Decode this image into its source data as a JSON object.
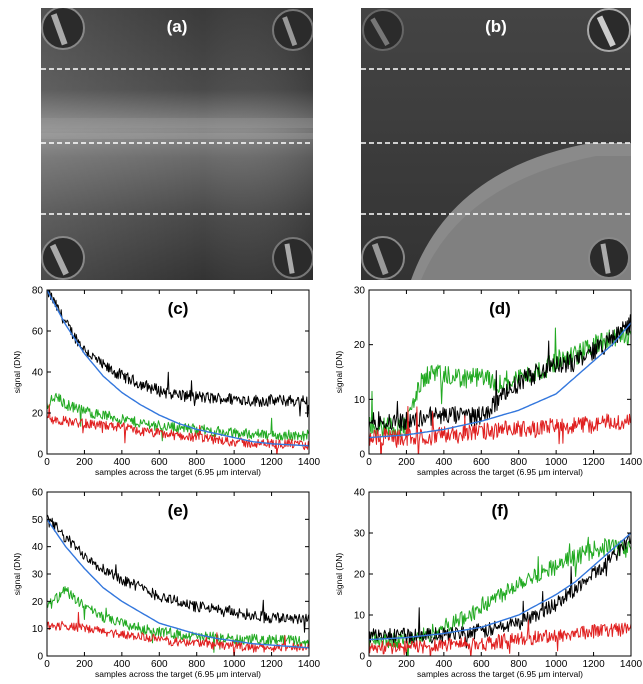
{
  "images": [
    {
      "id": "a",
      "label": "(a)"
    },
    {
      "id": "b",
      "label": "(b)"
    }
  ],
  "chart_data": [
    {
      "id": "c",
      "type": "line",
      "label": "(c)",
      "xlabel": "samples across the target (6.95 μm interval)",
      "ylabel": "signal (DN)",
      "xlim": [
        0,
        1400
      ],
      "ylim": [
        0,
        80
      ],
      "xticks": [
        0,
        200,
        400,
        600,
        800,
        1000,
        1200,
        1400
      ],
      "yticks": [
        0,
        20,
        40,
        60,
        80
      ],
      "series": [
        {
          "color": "#000000",
          "noise": 2.5,
          "x": [
            0,
            50,
            100,
            150,
            200,
            300,
            400,
            500,
            600,
            700,
            800,
            900,
            1000,
            1100,
            1200,
            1300,
            1400
          ],
          "y": [
            80,
            72,
            64,
            57,
            51,
            43,
            38,
            34,
            31,
            29,
            28,
            27,
            27,
            26,
            26,
            26,
            26
          ]
        },
        {
          "color": "#22aa22",
          "noise": 2.2,
          "x": [
            0,
            50,
            100,
            200,
            300,
            400,
            500,
            600,
            700,
            800,
            900,
            1000,
            1100,
            1200,
            1300,
            1400
          ],
          "y": [
            24,
            28,
            24,
            21,
            19,
            17,
            15,
            14,
            13,
            12,
            11,
            10,
            10,
            9,
            9,
            9
          ]
        },
        {
          "color": "#e02020",
          "noise": 2.0,
          "x": [
            0,
            100,
            200,
            300,
            400,
            500,
            600,
            700,
            800,
            900,
            1000,
            1100,
            1200,
            1300,
            1400
          ],
          "y": [
            17,
            16,
            15,
            14,
            13,
            11,
            10,
            9,
            8,
            7,
            6,
            5,
            5,
            5,
            4
          ]
        },
        {
          "color": "#3377dd",
          "noise": 0,
          "x": [
            0,
            100,
            200,
            300,
            400,
            500,
            600,
            700,
            800,
            900,
            1000,
            1100,
            1200,
            1300,
            1400
          ],
          "y": [
            80,
            63,
            49,
            38,
            30,
            24,
            19,
            15,
            12,
            10,
            8,
            6,
            5,
            4.5,
            4
          ]
        }
      ]
    },
    {
      "id": "d",
      "type": "line",
      "label": "(d)",
      "xlabel": "samples across the target (6.95 μm interval)",
      "ylabel": "signal (DN)",
      "xlim": [
        0,
        1400
      ],
      "ylim": [
        0,
        30
      ],
      "xticks": [
        0,
        200,
        400,
        600,
        800,
        1000,
        1200,
        1400
      ],
      "yticks": [
        0,
        10,
        20,
        30
      ],
      "series": [
        {
          "color": "#22aa22",
          "noise": 1.6,
          "x": [
            0,
            200,
            230,
            280,
            330,
            400,
            500,
            600,
            700,
            800,
            900,
            1000,
            1100,
            1200,
            1300,
            1400
          ],
          "y": [
            5,
            5,
            9,
            13,
            15,
            14,
            14,
            14,
            13,
            14,
            15,
            17,
            18,
            20,
            21,
            22
          ]
        },
        {
          "color": "#000000",
          "noise": 1.5,
          "x": [
            0,
            250,
            300,
            400,
            500,
            600,
            700,
            800,
            900,
            1000,
            1100,
            1200,
            1300,
            1400
          ],
          "y": [
            6,
            6,
            7,
            7,
            7,
            7,
            10,
            13,
            15,
            16,
            17,
            19,
            21,
            24
          ]
        },
        {
          "color": "#e02020",
          "noise": 1.4,
          "x": [
            0,
            200,
            400,
            600,
            800,
            1000,
            1200,
            1400
          ],
          "y": [
            3,
            3,
            3.5,
            4,
            4.5,
            5,
            5.5,
            6
          ]
        },
        {
          "color": "#3377dd",
          "noise": 0,
          "x": [
            0,
            200,
            400,
            600,
            800,
            1000,
            1100,
            1200,
            1300,
            1400
          ],
          "y": [
            3,
            3.5,
            4.5,
            6,
            8,
            11,
            14,
            17,
            20,
            24
          ]
        }
      ]
    },
    {
      "id": "e",
      "type": "line",
      "label": "(e)",
      "xlabel": "samples across the target (6.95 μm interval)",
      "ylabel": "signal (DN)",
      "xlim": [
        0,
        1400
      ],
      "ylim": [
        0,
        60
      ],
      "xticks": [
        0,
        200,
        400,
        600,
        800,
        1000,
        1200,
        1400
      ],
      "yticks": [
        0,
        10,
        20,
        30,
        40,
        50,
        60
      ],
      "series": [
        {
          "color": "#000000",
          "noise": 1.8,
          "x": [
            0,
            50,
            100,
            150,
            200,
            300,
            400,
            500,
            600,
            700,
            800,
            900,
            1000,
            1100,
            1200,
            1300,
            1400
          ],
          "y": [
            50,
            47,
            43,
            40,
            37,
            32,
            28,
            25,
            22,
            20,
            18,
            17,
            16,
            15,
            14,
            14,
            14
          ]
        },
        {
          "color": "#22aa22",
          "noise": 1.6,
          "x": [
            0,
            50,
            100,
            150,
            200,
            300,
            400,
            500,
            600,
            700,
            800,
            900,
            1000,
            1100,
            1200,
            1300,
            1400
          ],
          "y": [
            18,
            21,
            24,
            21,
            18,
            14,
            12,
            10,
            9,
            8,
            7,
            7,
            6,
            6,
            6,
            6,
            5
          ]
        },
        {
          "color": "#e02020",
          "noise": 1.4,
          "x": [
            0,
            100,
            200,
            300,
            400,
            500,
            600,
            700,
            800,
            900,
            1000,
            1100,
            1200,
            1300,
            1400
          ],
          "y": [
            11,
            11,
            10,
            9,
            8,
            7,
            6,
            5,
            5,
            4,
            4,
            3,
            3,
            3,
            3
          ]
        },
        {
          "color": "#3377dd",
          "noise": 0,
          "x": [
            0,
            100,
            200,
            300,
            400,
            500,
            600,
            700,
            800,
            900,
            1000,
            1100,
            1200,
            1300,
            1400
          ],
          "y": [
            50,
            40,
            32,
            25,
            20,
            16,
            12,
            10,
            8,
            6.5,
            5.5,
            4.5,
            4,
            3.5,
            3
          ]
        }
      ]
    },
    {
      "id": "f",
      "type": "line",
      "label": "(f)",
      "xlabel": "samples across the target (6.95 μm interval)",
      "ylabel": "signal (DN)",
      "xlim": [
        0,
        1400
      ],
      "ylim": [
        0,
        40
      ],
      "xticks": [
        0,
        200,
        400,
        600,
        800,
        1000,
        1200,
        1400
      ],
      "yticks": [
        0,
        10,
        20,
        30,
        40
      ],
      "series": [
        {
          "color": "#22aa22",
          "noise": 1.8,
          "x": [
            0,
            200,
            300,
            400,
            500,
            600,
            700,
            800,
            900,
            1000,
            1100,
            1200,
            1300,
            1400
          ],
          "y": [
            4,
            4,
            5,
            7,
            9,
            12,
            15,
            18,
            20,
            22,
            24,
            26,
            27,
            26
          ]
        },
        {
          "color": "#000000",
          "noise": 1.6,
          "x": [
            0,
            200,
            400,
            600,
            700,
            800,
            900,
            1000,
            1100,
            1200,
            1300,
            1400
          ],
          "y": [
            5,
            5,
            5,
            6,
            7,
            8,
            10,
            13,
            16,
            20,
            24,
            29
          ]
        },
        {
          "color": "#e02020",
          "noise": 1.5,
          "x": [
            0,
            200,
            400,
            600,
            800,
            1000,
            1200,
            1400
          ],
          "y": [
            2,
            2,
            3,
            3,
            4,
            5,
            6,
            7
          ]
        },
        {
          "color": "#3377dd",
          "noise": 0,
          "x": [
            0,
            200,
            400,
            600,
            800,
            1000,
            1100,
            1200,
            1300,
            1400
          ],
          "y": [
            4,
            4.5,
            5.5,
            7,
            10,
            15,
            18,
            22,
            26,
            30
          ]
        }
      ]
    }
  ]
}
